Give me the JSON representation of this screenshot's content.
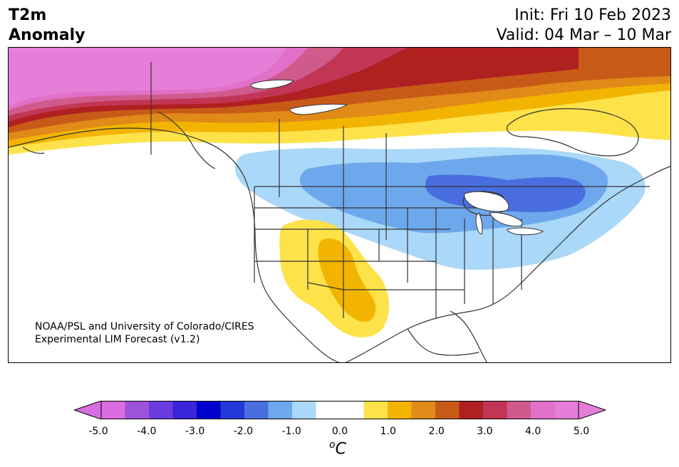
{
  "title": {
    "line1": "T2m",
    "line2": "Anomaly"
  },
  "info": {
    "init": "Init: Fri 10 Feb 2023",
    "valid": "Valid: 04 Mar – 10 Mar"
  },
  "credit": {
    "line1": "NOAA/PSL and University of Colorado/CIRES",
    "line2": "Experimental LIM Forecast (v1.2)"
  },
  "colorbar": {
    "ticks": [
      "-5.0",
      "-4.0",
      "-3.0",
      "-2.0",
      "-1.0",
      "0.0",
      "1.0",
      "2.0",
      "3.0",
      "4.0",
      "5.0"
    ],
    "colors": [
      "#d86ce0",
      "#9e52dc",
      "#6b3de0",
      "#3a25d8",
      "#0000cc",
      "#2538d8",
      "#4a6ee0",
      "#6ea8ec",
      "#aad8f8",
      "#ffffff",
      "#ffffff",
      "#fde24a",
      "#f2b400",
      "#e08a18",
      "#c85a18",
      "#b02020",
      "#c23555",
      "#d05a8c",
      "#e070c8",
      "#e57ed8"
    ],
    "units_base": "C",
    "units_sup": "o"
  }
}
